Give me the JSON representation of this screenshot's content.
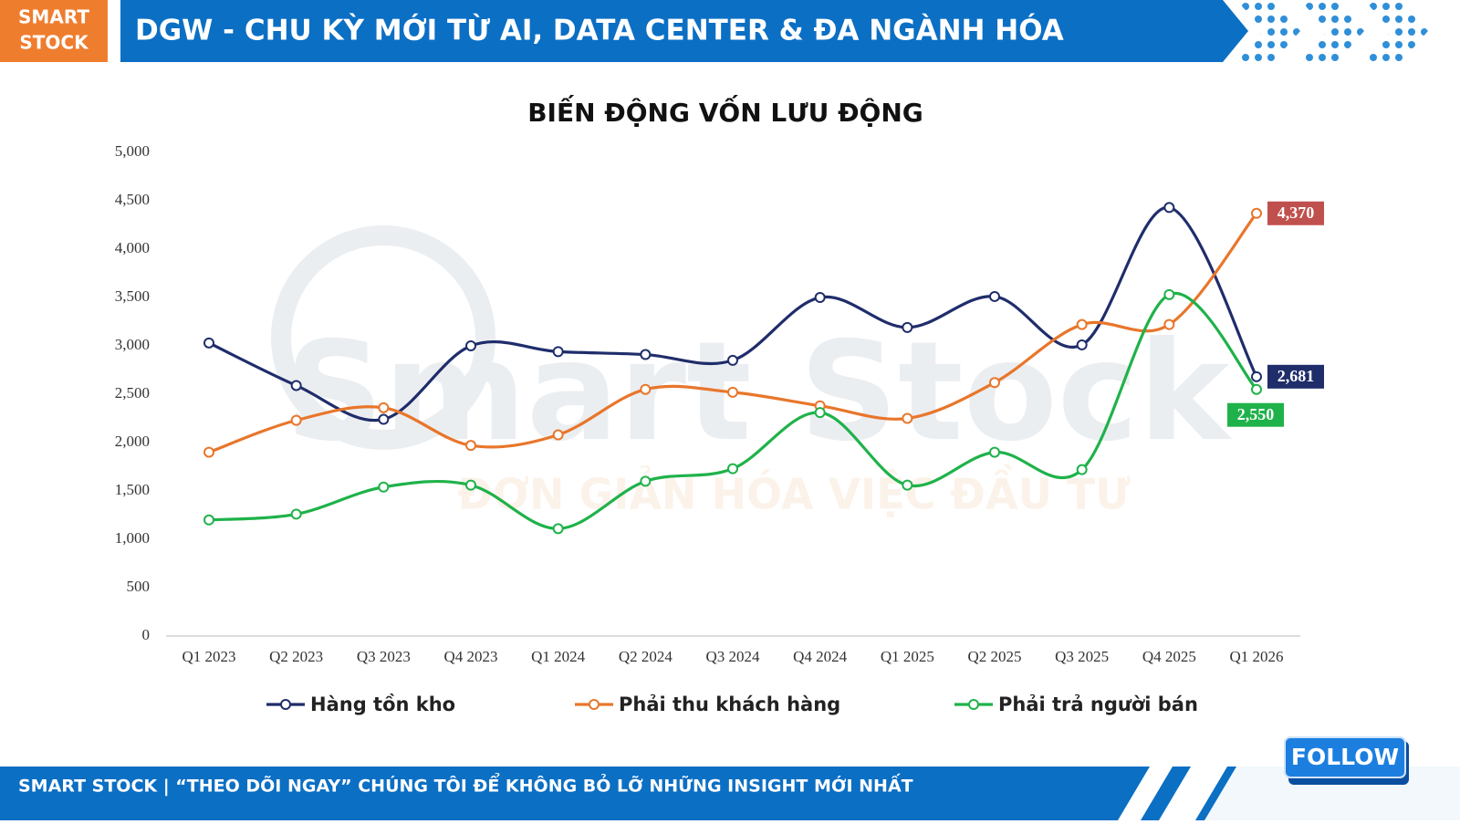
{
  "header": {
    "logo": [
      "SMART",
      "STOCK"
    ],
    "title": "DGW - CHU KỲ MỚI TỪ AI, DATA CENTER & ĐA NGÀNH HÓA"
  },
  "watermark": {
    "name": "Smart Stock",
    "slogan": "ĐƠN GIẢN HÓA VIỆC ĐẦU TƯ"
  },
  "chart_data": {
    "type": "line",
    "title": "BIẾN ĐỘNG VỐN LƯU ĐỘNG",
    "categories": [
      "Q1 2023",
      "Q2 2023",
      "Q3 2023",
      "Q4 2023",
      "Q1 2024",
      "Q2 2024",
      "Q3 2024",
      "Q4 2024",
      "Q1 2025",
      "Q2 2025",
      "Q3 2025",
      "Q4 2025",
      "Q1 2026"
    ],
    "series": [
      {
        "name": "Hàng tồn kho",
        "color": "#1f2d6b",
        "label_color": "#1f2d6b",
        "values": [
          3030,
          2590,
          2240,
          3000,
          2940,
          2910,
          2850,
          3500,
          3190,
          3510,
          3010,
          4430,
          2681
        ],
        "value_labels": [
          null,
          null,
          null,
          null,
          null,
          null,
          null,
          null,
          null,
          null,
          null,
          null,
          "2,681"
        ]
      },
      {
        "name": "Phải thu khách hàng",
        "color": "#e8762b",
        "label_color": "#c0504d",
        "values": [
          1900,
          2230,
          2360,
          1970,
          2080,
          2550,
          2520,
          2380,
          2250,
          2620,
          3220,
          3220,
          4370
        ],
        "value_labels": [
          null,
          null,
          null,
          null,
          null,
          null,
          null,
          null,
          null,
          null,
          null,
          null,
          "4,370"
        ]
      },
      {
        "name": "Phải trả người bán",
        "color": "#1fb24a",
        "label_color": "#1fb24a",
        "values": [
          1200,
          1260,
          1540,
          1560,
          1110,
          1600,
          1730,
          2310,
          1560,
          1900,
          1720,
          3530,
          2550
        ],
        "value_labels": [
          null,
          null,
          null,
          null,
          null,
          null,
          null,
          null,
          null,
          null,
          null,
          null,
          "2,550"
        ]
      }
    ],
    "ylim": [
      0,
      5000
    ],
    "yticks": [
      0,
      500,
      {
        "value": 1000,
        "label": "1,000"
      },
      {
        "value": 1500,
        "label": "1,500"
      },
      {
        "value": 2000,
        "label": "2,000"
      },
      {
        "value": 2500,
        "label": "2,500"
      },
      {
        "value": 3000,
        "label": "3,000"
      },
      {
        "value": 3500,
        "label": "3,500"
      },
      {
        "value": 4000,
        "label": "4,000"
      },
      {
        "value": 4500,
        "label": "4,500"
      },
      {
        "value": 5000,
        "label": "5,000"
      }
    ],
    "grid": false,
    "legend": "bottom"
  },
  "footer": {
    "text": "SMART STOCK | “THEO DÕI NGAY” CHÚNG TÔI ĐỂ KHÔNG BỎ LỠ NHỮNG INSIGHT MỚI NHẤT",
    "button": "FOLLOW"
  }
}
